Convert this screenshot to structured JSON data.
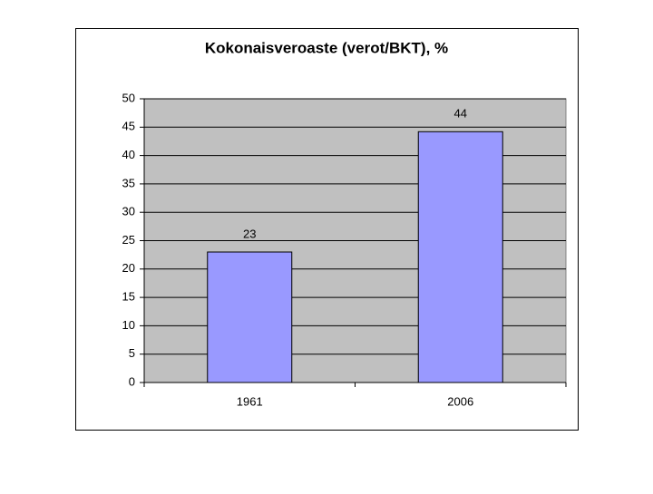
{
  "chart_data": {
    "type": "bar",
    "title": "Kokonaisveroaste (verot/BKT), %",
    "categories": [
      "1961",
      "2006"
    ],
    "values": [
      23,
      44.2
    ],
    "value_labels": [
      "23",
      "44"
    ],
    "color": "#9999ff",
    "ylim": [
      0,
      50
    ],
    "yticks": [
      0,
      5,
      10,
      15,
      20,
      25,
      30,
      35,
      40,
      45,
      50
    ],
    "grid": true
  }
}
